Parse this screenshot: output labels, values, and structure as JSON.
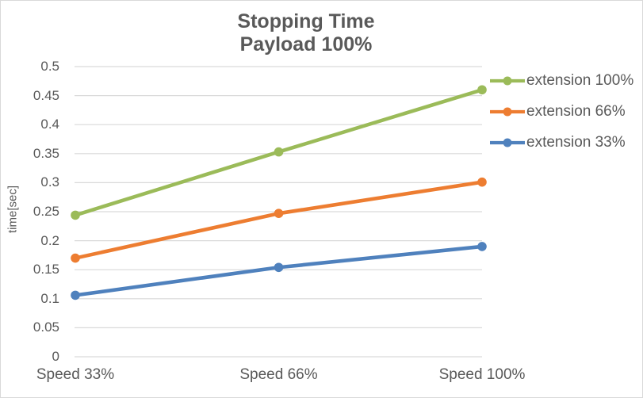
{
  "chart_data": {
    "type": "line",
    "title": "Stopping Time",
    "subtitle": "Payload 100%",
    "ylabel": "time[sec]",
    "ylim": [
      0,
      0.5
    ],
    "ytick_step": 0.05,
    "grid": true,
    "legend_position": "right",
    "marker": "circle",
    "categories": [
      "Speed 33%",
      "Speed 66%",
      "Speed 100%"
    ],
    "series": [
      {
        "name": "extension 100%",
        "color": "#9BBB59",
        "values": [
          0.244,
          0.353,
          0.46
        ]
      },
      {
        "name": "extension 66%",
        "color": "#ED7D31",
        "values": [
          0.17,
          0.247,
          0.301
        ]
      },
      {
        "name": "extension 33%",
        "color": "#4F81BD",
        "values": [
          0.106,
          0.154,
          0.19
        ]
      }
    ]
  },
  "theme": {
    "text_color": "#595959",
    "gridline_color": "#D9D9D9",
    "border_color": "#D9D9D9",
    "background": "#FFFFFF"
  }
}
